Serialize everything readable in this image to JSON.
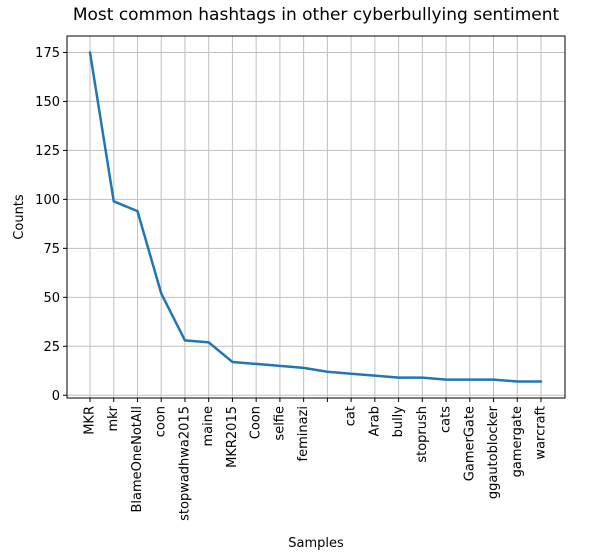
{
  "chart_data": {
    "type": "line",
    "title": "Most common hashtags in other cyberbullying sentiment",
    "xlabel": "Samples",
    "ylabel": "Counts",
    "categories": [
      "MKR",
      "mkr",
      "BlameOneNotAll",
      "coon",
      "stopwadhwa2015",
      "maine",
      "MKR2015",
      "Coon",
      "selfie",
      "feminazi",
      "",
      "cat",
      "Arab",
      "bully",
      "stoprush",
      "cats",
      "GamerGate",
      "ggautoblocker",
      "gamergate",
      "warcraft"
    ],
    "values": [
      175,
      99,
      94,
      52,
      28,
      27,
      17,
      16,
      15,
      14,
      12,
      11,
      10,
      9,
      9,
      8,
      8,
      8,
      7,
      7
    ],
    "ylim": [
      -1.4,
      183.4
    ],
    "yticks": [
      0,
      25,
      50,
      75,
      100,
      125,
      150,
      175
    ],
    "grid": true,
    "line_color": "#1f77b4"
  }
}
